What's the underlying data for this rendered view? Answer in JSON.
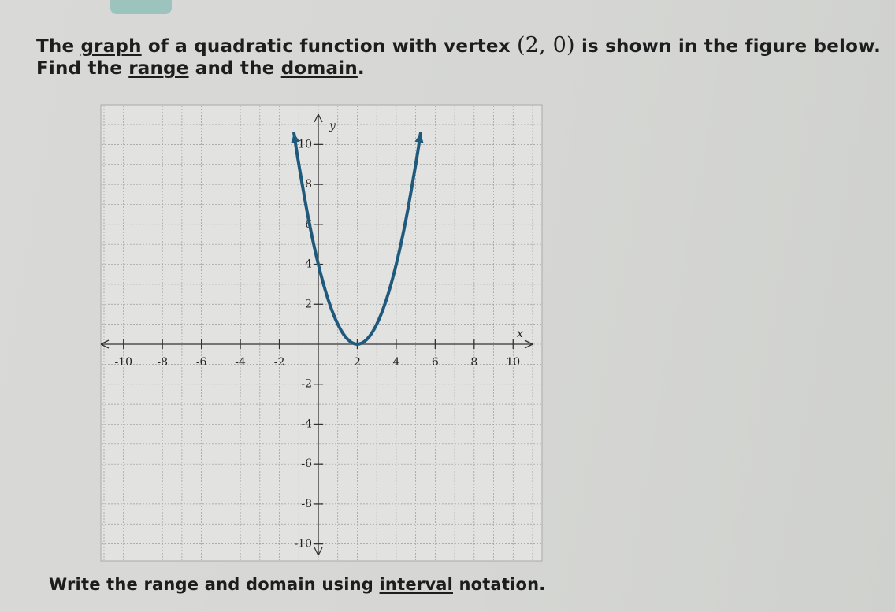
{
  "question": {
    "line1": [
      "The ",
      "graph",
      " of a quadratic function with vertex ",
      "(2, 0)",
      " is shown in the figure below."
    ],
    "line2": [
      "Find the ",
      "range",
      " and the ",
      "domain",
      "."
    ],
    "line3": [
      "Write the range and domain using ",
      "interval",
      " notation."
    ]
  },
  "graph": {
    "x_label": "x",
    "y_label": "y",
    "xlim": [
      -11,
      11
    ],
    "ylim": [
      -11,
      11
    ],
    "xticks": [
      -10,
      -8,
      -6,
      -4,
      -2,
      2,
      4,
      6,
      8,
      10
    ],
    "yticks": [
      -10,
      -8,
      -6,
      -4,
      -2,
      2,
      4,
      6,
      8,
      10
    ],
    "curve": {
      "color": "#1f5a7d",
      "x": [
        -1.25,
        -1,
        -0.5,
        0,
        0.5,
        1,
        1.5,
        2,
        2.5,
        3,
        3.5,
        4,
        4.5,
        5,
        5.25
      ],
      "y": [
        10.5625,
        9,
        6.25,
        4,
        2.25,
        1,
        0.25,
        0,
        0.25,
        1,
        2.25,
        4,
        6.25,
        9,
        10.5625
      ]
    }
  }
}
